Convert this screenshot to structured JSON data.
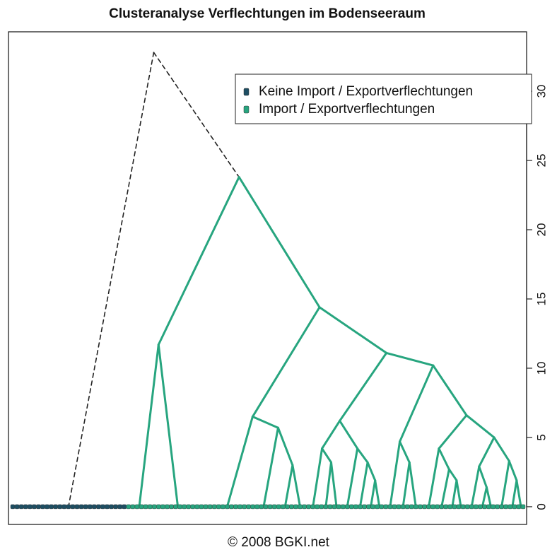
{
  "chart_data": {
    "type": "dendrogram",
    "title": "Clusteranalyse Verflechtungen im Bodenseeraum",
    "caption": "© 2008 BGKI.net",
    "ylim": [
      -1.28,
      34.29
    ],
    "yticks": [
      0,
      5,
      10,
      15,
      20,
      25,
      30
    ],
    "legend": "topright",
    "series": [
      {
        "name": "Keine Import / Exportverflechtungen",
        "color": "#1d4e63"
      },
      {
        "name": "Import / Exportverflechtungen",
        "color": "#27a57f"
      }
    ],
    "tree": {
      "height": 32.8,
      "dashed": true,
      "children": [
        {
          "series": 0,
          "values": [
            0,
            0,
            0,
            0,
            0,
            0,
            0,
            0,
            0,
            0,
            0,
            0,
            0,
            0,
            0,
            0,
            0,
            0,
            0,
            0,
            0,
            0,
            0,
            0,
            0,
            0,
            0
          ]
        },
        {
          "height": 23.8,
          "children": [
            {
              "height": 11.7,
              "children": [
                {
                  "series": 1,
                  "values": [
                    0,
                    0,
                    0,
                    0,
                    0,
                    0
                  ]
                },
                {
                  "series": 1,
                  "values": [
                    0,
                    0,
                    0,
                    0,
                    0,
                    0,
                    0,
                    0,
                    0,
                    0,
                    0,
                    0
                  ]
                }
              ]
            },
            {
              "height": 14.4,
              "children": [
                {
                  "height": 6.5,
                  "children": [
                    {
                      "series": 1,
                      "values": [
                        0,
                        0,
                        0,
                        0,
                        0,
                        0,
                        0,
                        0,
                        0,
                        0,
                        0
                      ]
                    },
                    {
                      "height": 5.7,
                      "children": [
                        {
                          "series": 1,
                          "values": [
                            0,
                            0,
                            0,
                            0,
                            0,
                            0
                          ]
                        },
                        {
                          "height": 3.0,
                          "children": [
                            {
                              "series": 1,
                              "values": [
                                0,
                                0,
                                0,
                                0
                              ]
                            },
                            {
                              "series": 1,
                              "values": [
                                0,
                                0,
                                0
                              ]
                            }
                          ]
                        }
                      ]
                    }
                  ]
                },
                {
                  "height": 11.1,
                  "children": [
                    {
                      "height": 6.2,
                      "children": [
                        {
                          "height": 4.2,
                          "children": [
                            {
                              "series": 1,
                              "values": [
                                0,
                                0,
                                0
                              ]
                            },
                            {
                              "height": 3.2,
                              "children": [
                                {
                                  "series": 1,
                                  "values": [
                                    0,
                                    0,
                                    0
                                  ]
                                },
                                {
                                  "series": 1,
                                  "values": [
                                    0,
                                    0
                                  ]
                                }
                              ]
                            }
                          ]
                        },
                        {
                          "height": 4.2,
                          "children": [
                            {
                              "series": 1,
                              "values": [
                                0,
                                0,
                                0
                              ]
                            },
                            {
                              "height": 3.2,
                              "children": [
                                {
                                  "series": 1,
                                  "values": [
                                    0,
                                    0,
                                    0
                                  ]
                                },
                                {
                                  "height": 1.9,
                                  "children": [
                                    {
                                      "series": 1,
                                      "values": [
                                        0,
                                        0
                                      ]
                                    },
                                    {
                                      "series": 1,
                                      "values": [
                                        0,
                                        0
                                      ]
                                    }
                                  ]
                                }
                              ]
                            }
                          ]
                        }
                      ]
                    },
                    {
                      "height": 10.2,
                      "children": [
                        {
                          "height": 4.7,
                          "children": [
                            {
                              "series": 1,
                              "values": [
                                0,
                                0,
                                0
                              ]
                            },
                            {
                              "height": 3.2,
                              "children": [
                                {
                                  "series": 1,
                                  "values": [
                                    0,
                                    0,
                                    0
                                  ]
                                },
                                {
                                  "series": 1,
                                  "values": [
                                    0,
                                    0,
                                    0
                                  ]
                                }
                              ]
                            }
                          ]
                        },
                        {
                          "height": 6.6,
                          "children": [
                            {
                              "height": 4.2,
                              "children": [
                                {
                                  "series": 1,
                                  "values": [
                                    0,
                                    0,
                                    0
                                  ]
                                },
                                {
                                  "height": 2.7,
                                  "children": [
                                    {
                                      "series": 1,
                                      "values": [
                                        0,
                                        0,
                                        0
                                      ]
                                    },
                                    {
                                      "height": 1.9,
                                      "children": [
                                        {
                                          "series": 1,
                                          "values": [
                                            0,
                                            0
                                          ]
                                        },
                                        {
                                          "series": 1,
                                          "values": [
                                            0,
                                            0
                                          ]
                                        }
                                      ]
                                    }
                                  ]
                                }
                              ]
                            },
                            {
                              "height": 5.0,
                              "children": [
                                {
                                  "height": 2.9,
                                  "children": [
                                    {
                                      "series": 1,
                                      "values": [
                                        0,
                                        0,
                                        0
                                      ]
                                    },
                                    {
                                      "height": 1.4,
                                      "children": [
                                        {
                                          "series": 1,
                                          "values": [
                                            0,
                                            0
                                          ]
                                        },
                                        {
                                          "series": 1,
                                          "values": [
                                            0,
                                            0
                                          ]
                                        }
                                      ]
                                    }
                                  ]
                                },
                                {
                                  "height": 3.3,
                                  "children": [
                                    {
                                      "series": 1,
                                      "values": [
                                        0,
                                        0,
                                        0
                                      ]
                                    },
                                    {
                                      "height": 1.9,
                                      "children": [
                                        {
                                          "series": 1,
                                          "values": [
                                            0,
                                            0
                                          ]
                                        },
                                        {
                                          "series": 1,
                                          "values": [
                                            0,
                                            0
                                          ]
                                        }
                                      ]
                                    }
                                  ]
                                }
                              ]
                            }
                          ]
                        }
                      ]
                    }
                  ]
                }
              ]
            }
          ]
        }
      ]
    }
  }
}
